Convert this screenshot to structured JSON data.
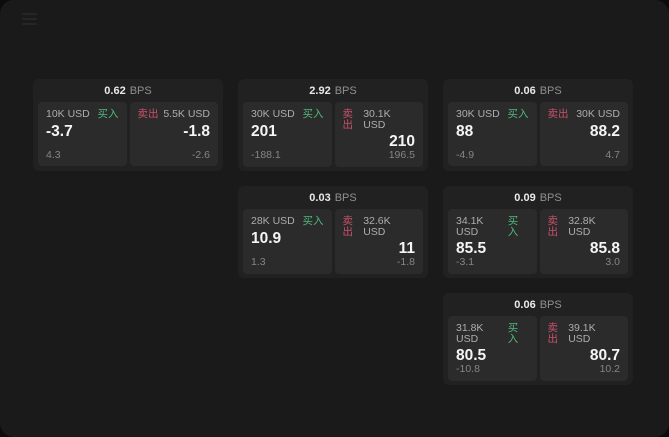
{
  "window": {
    "menu_icon": "menu"
  },
  "colors": {
    "page_bg": "#0c0c0c",
    "window_bg": "#1a1a1a",
    "card_bg": "#212121",
    "panel_bg": "#2b2b2b",
    "buy_green": "#50b97e",
    "sell_red": "#c9506b",
    "value_text": "#f5f5f5",
    "muted_text": "#858585"
  },
  "labels": {
    "bps_unit": "BPS",
    "buy": "买入",
    "sell": "卖出"
  },
  "cards": [
    {
      "bps_value": "0.62",
      "bps_unit": "BPS",
      "buy": {
        "amount": "10K USD",
        "side_label": "买入",
        "value": "-3.7",
        "sub_value": "4.3"
      },
      "sell": {
        "side_label": "卖出",
        "amount": "5.5K USD",
        "value": "-1.8",
        "sub_value": "-2.6"
      }
    },
    {
      "bps_value": "2.92",
      "bps_unit": "BPS",
      "buy": {
        "amount": "30K USD",
        "side_label": "买入",
        "value": "201",
        "sub_value": "-188.1"
      },
      "sell": {
        "side_label": "卖出",
        "amount": "30.1K USD",
        "value": "210",
        "sub_value": "196.5"
      }
    },
    {
      "bps_value": "0.03",
      "bps_unit": "BPS",
      "buy": {
        "amount": "28K USD",
        "side_label": "买入",
        "value": "10.9",
        "sub_value": "1.3"
      },
      "sell": {
        "side_label": "卖出",
        "amount": "32.6K USD",
        "value": "11",
        "sub_value": "-1.8"
      }
    },
    {
      "bps_value": "0.06",
      "bps_unit": "BPS",
      "buy": {
        "amount": "30K USD",
        "side_label": "买入",
        "value": "88",
        "sub_value": "-4.9"
      },
      "sell": {
        "side_label": "卖出",
        "amount": "30K USD",
        "value": "88.2",
        "sub_value": "4.7"
      }
    },
    {
      "bps_value": "0.09",
      "bps_unit": "BPS",
      "buy": {
        "amount": "34.1K USD",
        "side_label": "买入",
        "value": "85.5",
        "sub_value": "-3.1"
      },
      "sell": {
        "side_label": "卖出",
        "amount": "32.8K USD",
        "value": "85.8",
        "sub_value": "3.0"
      }
    },
    {
      "bps_value": "0.06",
      "bps_unit": "BPS",
      "buy": {
        "amount": "31.8K USD",
        "side_label": "买入",
        "value": "80.5",
        "sub_value": "-10.8"
      },
      "sell": {
        "side_label": "卖出",
        "amount": "39.1K USD",
        "value": "80.7",
        "sub_value": "10.2"
      }
    }
  ]
}
